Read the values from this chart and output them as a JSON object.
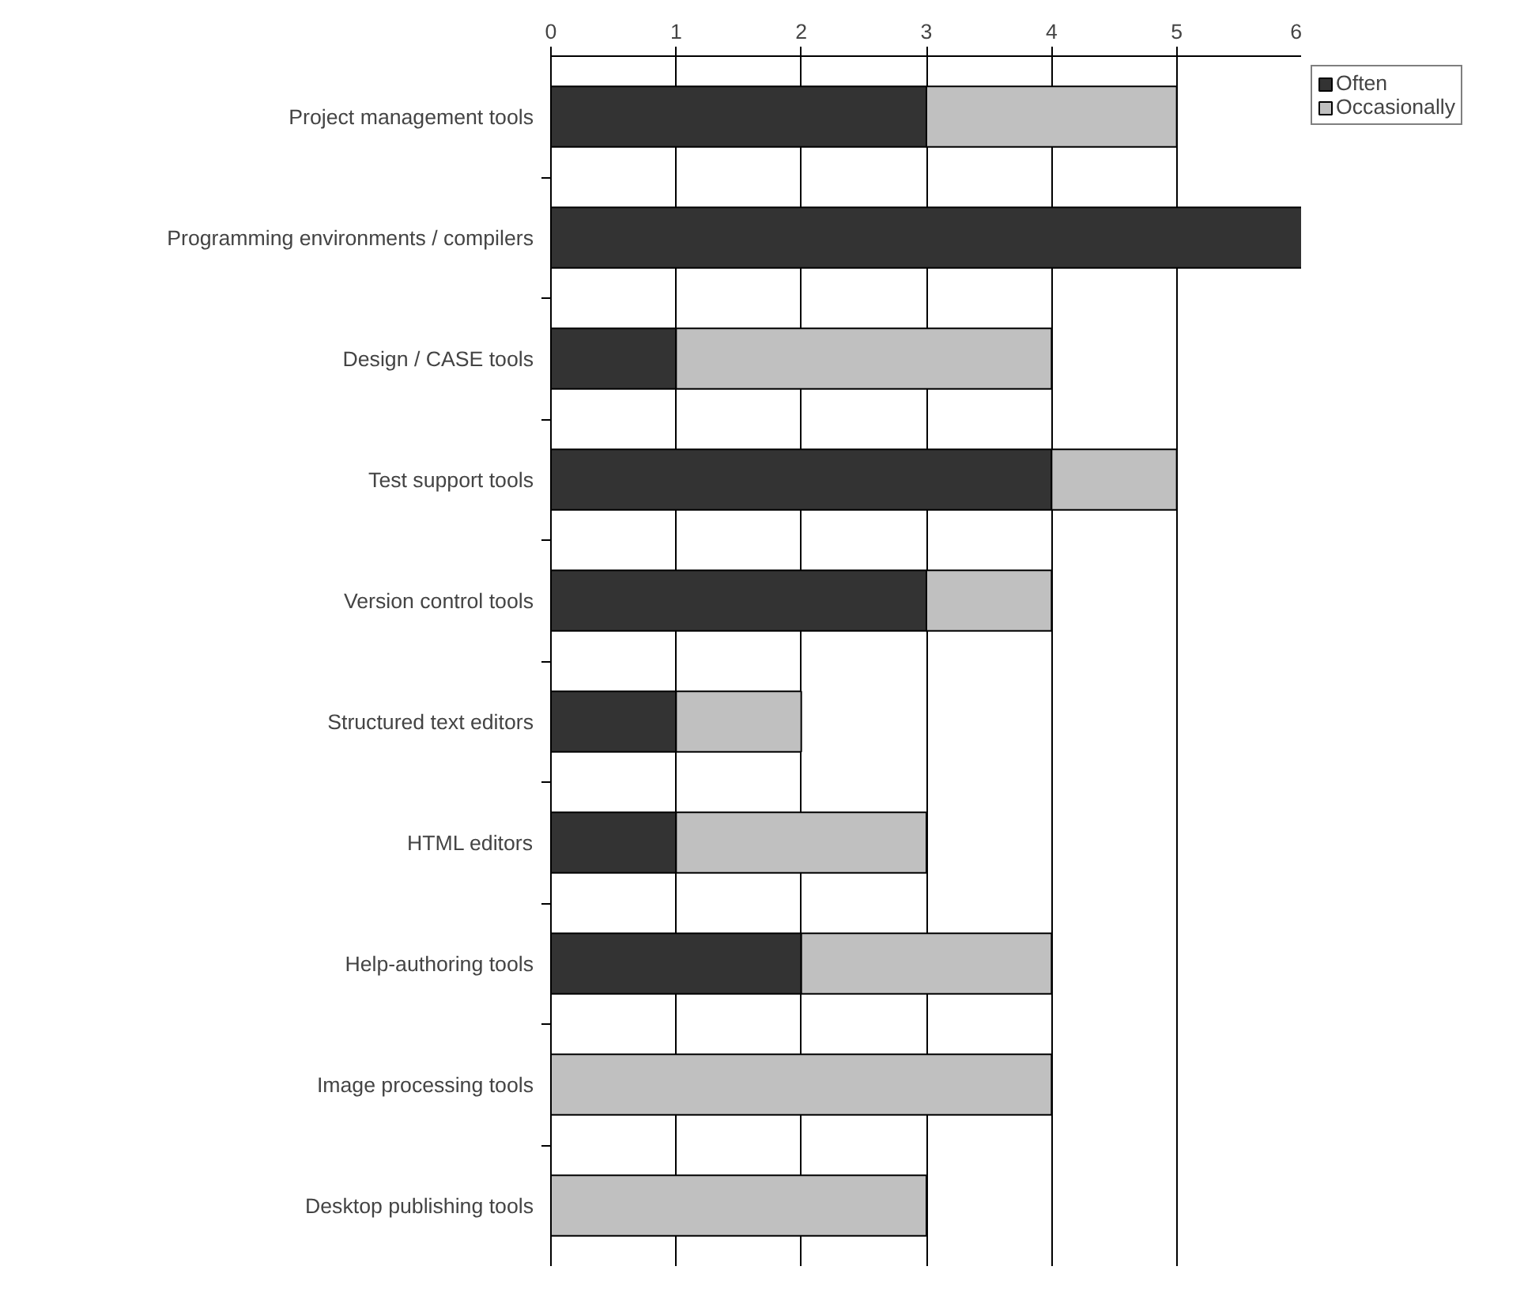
{
  "chart_data": {
    "type": "bar",
    "orientation": "horizontal",
    "stacked": true,
    "categories": [
      "Project management tools",
      "Programming environments / compilers",
      "Design / CASE tools",
      "Test support tools",
      "Version control tools",
      "Structured text editors",
      "HTML editors",
      "Help-authoring tools",
      "Image processing tools",
      "Desktop publishing tools"
    ],
    "series": [
      {
        "name": "Often",
        "color": "#333333",
        "values": [
          3,
          6,
          1,
          4,
          3,
          1,
          1,
          2,
          0,
          0
        ]
      },
      {
        "name": "Occasionally",
        "color": "#c0c0c0",
        "values": [
          2,
          0,
          3,
          1,
          1,
          1,
          2,
          2,
          4,
          3
        ]
      }
    ],
    "xlim": [
      0,
      6
    ],
    "xticks": [
      0,
      1,
      2,
      3,
      4,
      5,
      6
    ],
    "grid": "x",
    "legend": "top right"
  }
}
